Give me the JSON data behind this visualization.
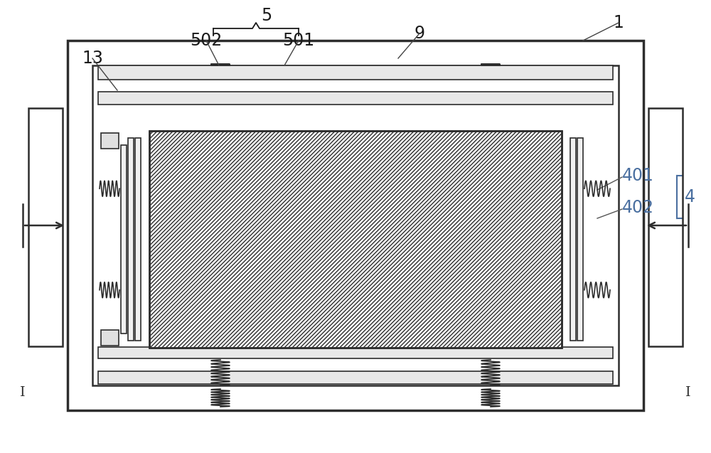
{
  "bg_color": "#ffffff",
  "line_color": "#2d2d2d",
  "label_color": "#1a1a1a",
  "blue_label_color": "#4a6fa0",
  "figsize": [
    10.0,
    6.37
  ],
  "dpi": 100
}
